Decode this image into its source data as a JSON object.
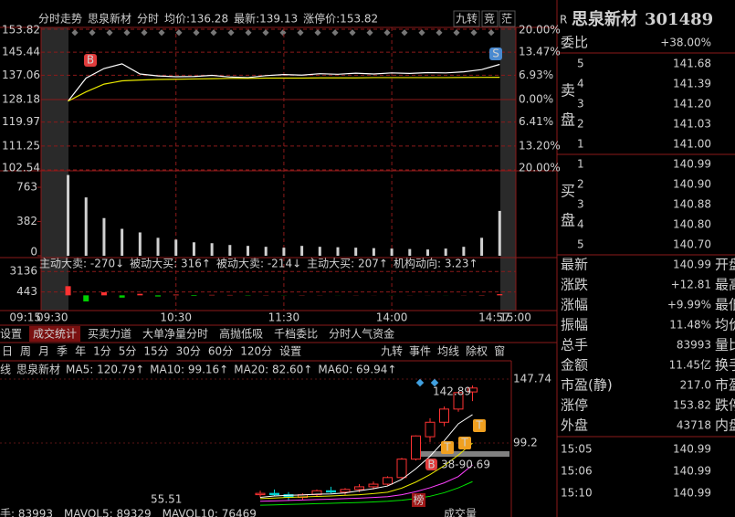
{
  "chart_data": [
    {
      "type": "line",
      "x": [
        0,
        10,
        20,
        30,
        40,
        50,
        60,
        70,
        80,
        90,
        100,
        110,
        120,
        130,
        140,
        150,
        160,
        170,
        180,
        190,
        200,
        210,
        220,
        230,
        240
      ],
      "series": [
        {
          "color": "#ffffff",
          "values": [
            127.6,
            136.0,
            139.5,
            141.2,
            137.5,
            136.8,
            136.5,
            136.6,
            137.0,
            136.4,
            136.2,
            136.9,
            137.3,
            137.1,
            137.6,
            137.4,
            137.8,
            137.5,
            137.9,
            137.7,
            138.0,
            137.9,
            138.3,
            139.1,
            141.0
          ]
        },
        {
          "color": "#e8e800",
          "values": [
            127.6,
            131.0,
            133.8,
            135.0,
            135.3,
            135.5,
            135.6,
            135.7,
            135.8,
            135.9,
            135.9,
            136.0,
            136.0,
            136.0,
            136.1,
            136.1,
            136.1,
            136.2,
            136.2,
            136.2,
            136.2,
            136.2,
            136.25,
            136.28,
            136.3
          ]
        }
      ],
      "xlim": [
        -15,
        249
      ],
      "xticks": [
        {
          "value": -15,
          "label": "09:15"
        },
        {
          "value": 0,
          "label": "09:30"
        },
        {
          "value": 60,
          "label": "10:30"
        },
        {
          "value": 120,
          "label": "11:30"
        },
        {
          "value": 180,
          "label": "14:00"
        },
        {
          "value": 237,
          "label": "14:57"
        },
        {
          "value": 240,
          "label": "15:00"
        }
      ],
      "ylim": [
        102.54,
        153.82
      ],
      "yticks": [
        153.82,
        145.44,
        137.06,
        128.18,
        119.97,
        111.25,
        102.54
      ],
      "y2lim": [
        -20,
        20
      ],
      "y2ticks": [
        {
          "value": 20,
          "label": "20.00%"
        },
        {
          "value": 13.47,
          "label": "13.47%"
        },
        {
          "value": 6.93,
          "label": "6.93%"
        },
        {
          "value": 0,
          "label": "0.00%"
        },
        {
          "value": -6.41,
          "label": "6.41%"
        },
        {
          "value": -13.2,
          "label": "13.20%"
        },
        {
          "value": -20,
          "label": "20.00%"
        }
      ],
      "grid": true
    },
    {
      "type": "bar",
      "color": "#d0d0d0",
      "x": [
        0,
        10,
        20,
        30,
        40,
        50,
        60,
        70,
        80,
        90,
        100,
        110,
        120,
        130,
        140,
        150,
        160,
        170,
        180,
        190,
        200,
        210,
        220,
        230,
        240
      ],
      "values": [
        900,
        650,
        420,
        300,
        260,
        200,
        180,
        150,
        140,
        120,
        110,
        100,
        90,
        110,
        100,
        95,
        90,
        85,
        80,
        75,
        70,
        80,
        100,
        200,
        500
      ],
      "xlim": [
        -15,
        249
      ],
      "ylim": [
        0,
        916
      ],
      "yticks": [
        0,
        382,
        763
      ]
    },
    {
      "type": "bar",
      "up_color": "#ff3232",
      "down_color": "#00d000",
      "x": [
        0,
        10,
        20,
        30,
        40,
        50,
        60,
        70,
        80,
        90,
        100,
        110,
        120,
        130,
        140,
        150,
        160,
        170,
        180,
        190,
        200,
        210,
        220,
        230,
        240
      ],
      "values": [
        1200,
        -800,
        400,
        -300,
        200,
        -150,
        100,
        -80,
        60,
        50,
        -40,
        30,
        -20,
        30,
        20,
        -10,
        20,
        10,
        -10,
        15,
        10,
        -10,
        20,
        40,
        150
      ],
      "xlim": [
        -15,
        249
      ],
      "ylim": [
        -2000,
        4000
      ],
      "yticks": [
        3136,
        443
      ]
    },
    {
      "type": "candlestick",
      "up_color": "#ff3232",
      "down_color": "#00d0d0",
      "candles": [
        {
          "open": 60,
          "high": 63,
          "low": 58,
          "close": 61
        },
        {
          "open": 61,
          "high": 64,
          "low": 59,
          "close": 60
        },
        {
          "open": 60,
          "high": 62,
          "low": 55.51,
          "close": 58
        },
        {
          "open": 58,
          "high": 61,
          "low": 56,
          "close": 60
        },
        {
          "open": 60,
          "high": 64,
          "low": 59,
          "close": 63
        },
        {
          "open": 63,
          "high": 66,
          "low": 61,
          "close": 62
        },
        {
          "open": 62,
          "high": 65,
          "low": 60,
          "close": 64
        },
        {
          "open": 64,
          "high": 68,
          "low": 62,
          "close": 66
        },
        {
          "open": 66,
          "high": 70,
          "low": 64,
          "close": 68
        },
        {
          "open": 68,
          "high": 74,
          "low": 67,
          "close": 73
        },
        {
          "open": 73,
          "high": 88,
          "low": 72,
          "close": 87
        },
        {
          "open": 87,
          "high": 105,
          "low": 86,
          "close": 104.6
        },
        {
          "open": 104,
          "high": 118,
          "low": 100,
          "close": 115
        },
        {
          "open": 115,
          "high": 127,
          "low": 112,
          "close": 125
        },
        {
          "open": 125,
          "high": 138,
          "low": 123,
          "close": 137.5
        },
        {
          "open": 138,
          "high": 142.89,
          "low": 131,
          "close": 140.99
        }
      ],
      "series": [
        {
          "name": "MA5: 120.79↑",
          "color": "#ffffff",
          "values": [
            58,
            59,
            59.5,
            59.8,
            60.4,
            60.6,
            61.4,
            63,
            64.6,
            66.6,
            71.6,
            79.7,
            89.2,
            100.9,
            113.8,
            120.79
          ]
        },
        {
          "name": "MA10: 99.16↑",
          "color": "#e8e800",
          "values": [
            57,
            57.5,
            58,
            58.3,
            58.7,
            59,
            59.5,
            60,
            60.8,
            61.9,
            65,
            69.6,
            75.3,
            82,
            90.1,
            99.16
          ]
        },
        {
          "name": "MA20: 82.60↑",
          "color": "#ff40ff",
          "values": [
            55,
            55.3,
            55.6,
            56,
            56.3,
            56.6,
            57,
            57.4,
            57.9,
            58.5,
            60,
            62.3,
            65.3,
            69,
            73.8,
            82.6
          ]
        },
        {
          "name": "MA60: 69.94↑",
          "color": "#00e600",
          "values": [
            52,
            52.3,
            52.6,
            52.9,
            53.2,
            53.5,
            53.8,
            54.1,
            54.5,
            55,
            55.8,
            57,
            58.8,
            61.5,
            65.2,
            69.94
          ]
        }
      ],
      "ylim": [
        50.7,
        154.7
      ],
      "yticks": [
        99.2,
        147.74
      ],
      "annotations": [
        "142.89",
        "38-90.69",
        "55.51"
      ]
    }
  ],
  "header": {
    "items": [
      "分时走势",
      "思泉新材",
      "分时",
      "均价:136.28",
      "最新:139.13",
      "涨停价:153.82"
    ],
    "buttons": [
      "九转",
      "竞",
      "茫"
    ]
  },
  "markers": {
    "buy": "B",
    "sell": "S",
    "t": "T",
    "rank": "榜"
  },
  "flow_labels": [
    {
      "text": "主动大卖: -270↓",
      "color": "#00d000"
    },
    {
      "text": "被动大买: 316↑",
      "color": "#a03030"
    },
    {
      "text": "被动大卖: -214↓",
      "color": "#00d000"
    },
    {
      "text": "主动大买: 207↑",
      "color": "#ff3232"
    },
    {
      "text": "机构动向: 3.23↑",
      "color": "#ff3232"
    }
  ],
  "tabs": [
    "设置",
    "成交统计",
    "买卖力道",
    "大单净量分时",
    "高抛低吸",
    "千档委比",
    "分时人气资金"
  ],
  "kline_toolbar": {
    "periods": [
      "日",
      "周",
      "月",
      "季",
      "年",
      "1分",
      "5分",
      "15分",
      "30分",
      "60分",
      "120分",
      "设置"
    ],
    "tools": [
      "九转",
      "事件",
      "均线",
      "除权",
      "窗"
    ]
  },
  "kline_legend": [
    "线",
    "思泉新材"
  ],
  "vol_footer": [
    "手: 83993",
    "MAVOL5: 89329",
    "MAVOL10: 76469",
    "成交量"
  ],
  "quote": {
    "flag": "R",
    "name": "思泉新材",
    "code": "301489",
    "ratio_label": "委比",
    "ratio": "+38.00%",
    "sell_label": [
      "卖",
      "盘"
    ],
    "buy_label": [
      "买",
      "盘"
    ],
    "sell": [
      {
        "level": "5",
        "price": "141.68"
      },
      {
        "level": "4",
        "price": "141.39"
      },
      {
        "level": "3",
        "price": "141.20"
      },
      {
        "level": "2",
        "price": "141.03"
      },
      {
        "level": "1",
        "price": "141.00"
      }
    ],
    "buy": [
      {
        "level": "1",
        "price": "140.99"
      },
      {
        "level": "2",
        "price": "140.90"
      },
      {
        "level": "3",
        "price": "140.88"
      },
      {
        "level": "4",
        "price": "140.80"
      },
      {
        "level": "5",
        "price": "140.70"
      }
    ],
    "stats": [
      {
        "label": "最新",
        "value": "140.99",
        "color": "#ff3232",
        "next": "开盘"
      },
      {
        "label": "涨跌",
        "value": "+12.81",
        "color": "#ff3232",
        "next": "最高"
      },
      {
        "label": "涨幅",
        "value": "+9.99%",
        "color": "#ff3232",
        "next": "最低"
      },
      {
        "label": "振幅",
        "value": "11.48%",
        "color": "#30d0d0",
        "next": "均价"
      },
      {
        "label": "总手",
        "value": "83993",
        "color": "#30d0d0",
        "next": "量比"
      },
      {
        "label": "金额",
        "value": "11.45亿",
        "color": "#30d0d0",
        "next": "换手"
      },
      {
        "label": "市盈(静)",
        "value": "217.0",
        "color": "#e0e0e0",
        "next": "市盈"
      },
      {
        "label": "涨停",
        "value": "153.82",
        "color": "#ff3232",
        "next": "跌停"
      },
      {
        "label": "外盘",
        "value": "43718",
        "color": "#ff3232",
        "next": "内盘"
      }
    ],
    "trades": [
      {
        "time": "15:05",
        "price": "140.99"
      },
      {
        "time": "15:06",
        "price": "140.99"
      },
      {
        "time": "15:10",
        "price": "140.99"
      }
    ]
  }
}
